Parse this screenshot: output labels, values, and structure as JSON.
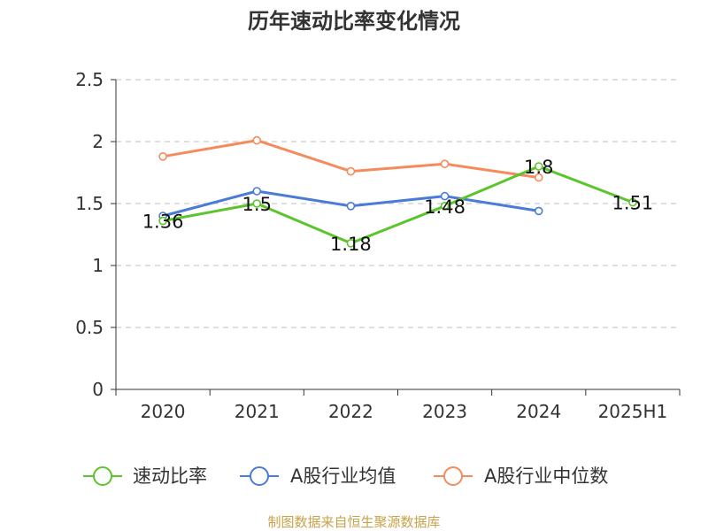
{
  "chart_data": {
    "type": "line",
    "title": "历年速动比率变化情况",
    "categories": [
      "2020",
      "2021",
      "2022",
      "2023",
      "2024",
      "2025H1"
    ],
    "ylim": [
      0,
      2.5
    ],
    "yticks": [
      "0",
      "0.5",
      "1",
      "1.5",
      "2",
      "2.5"
    ],
    "grid": true,
    "legend_position": "bottom",
    "series": [
      {
        "name": "速动比率",
        "color": "#5cc42c",
        "values": [
          1.36,
          1.5,
          1.18,
          1.48,
          1.8,
          1.51
        ],
        "labels": [
          "1.36",
          "1.5",
          "1.18",
          "1.48",
          "1.8",
          "1.51"
        ]
      },
      {
        "name": "A股行业均值",
        "color": "#4a7bd6",
        "values": [
          1.4,
          1.6,
          1.48,
          1.56,
          1.44,
          null
        ]
      },
      {
        "name": "A股行业中位数",
        "color": "#f58b5a",
        "values": [
          1.88,
          2.01,
          1.76,
          1.82,
          1.71,
          null
        ]
      }
    ],
    "source": "制图数据来自恒生聚源数据库"
  }
}
